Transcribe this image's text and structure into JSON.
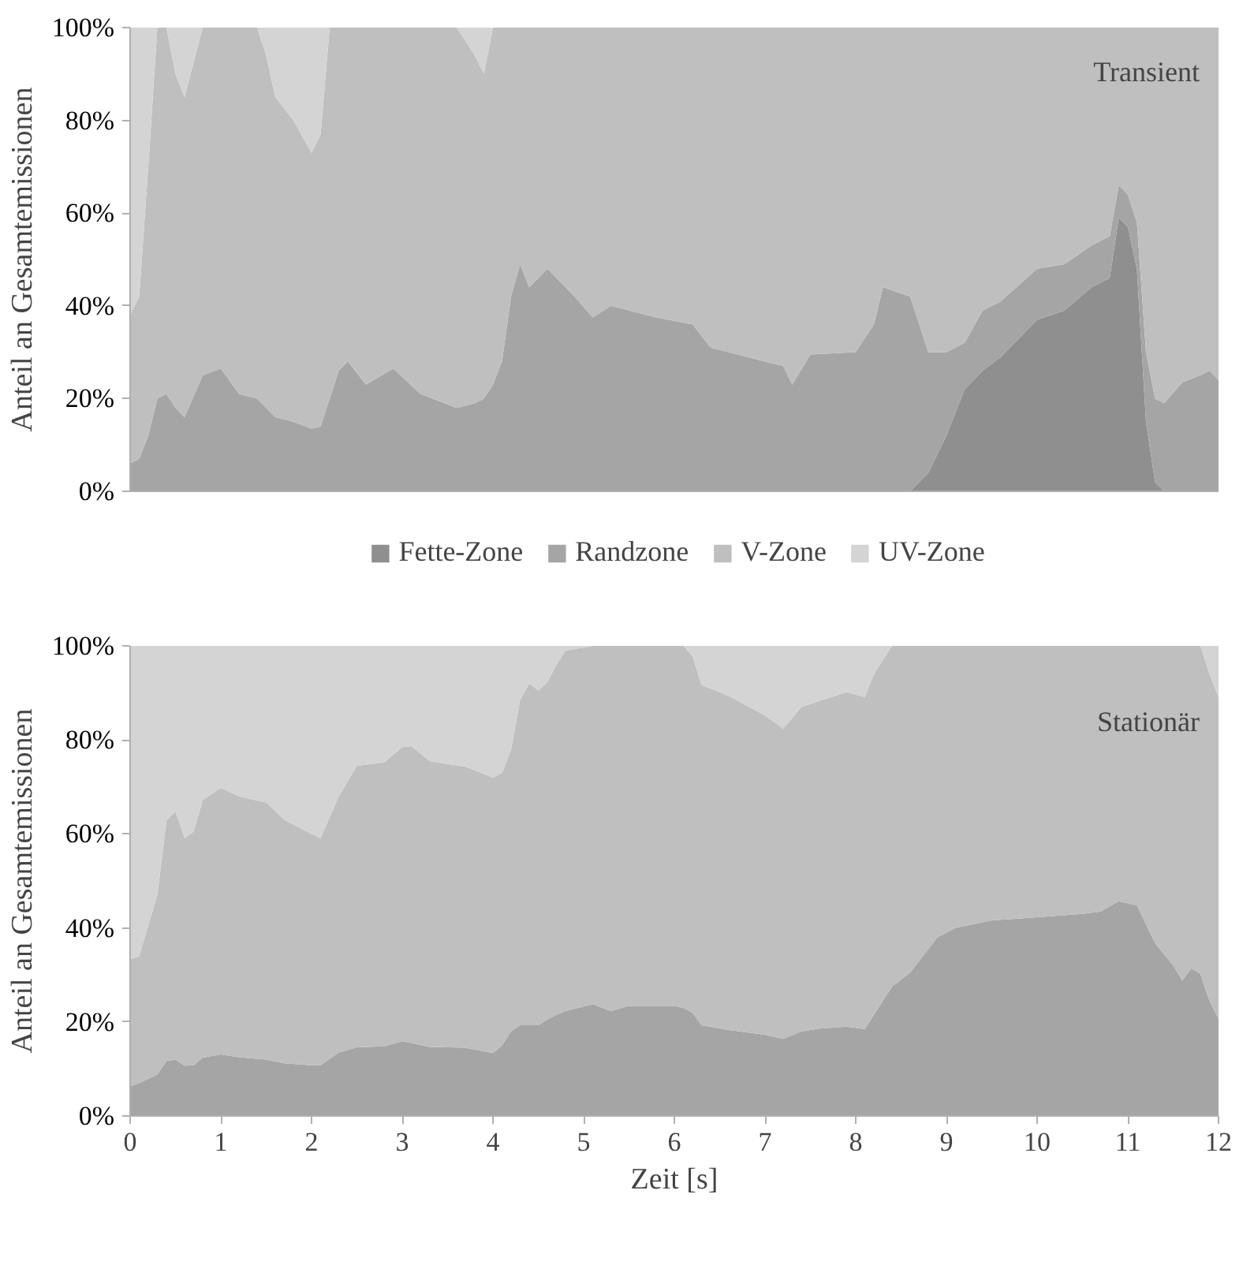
{
  "chart_data": [
    {
      "type": "area",
      "stacked": true,
      "ylabel": "Anteil an Gesamtemissionen",
      "annotations": [
        "Transient"
      ],
      "legend": "bottom",
      "grid": false,
      "tick_labels": "y",
      "x": [
        0,
        0.1,
        0.2,
        0.3,
        0.4,
        0.5,
        0.6,
        0.8,
        1.0,
        1.2,
        1.4,
        1.5,
        1.6,
        1.8,
        2.0,
        2.1,
        2.2,
        2.3,
        2.4,
        2.6,
        2.9,
        3.2,
        3.6,
        3.8,
        3.9,
        4.0,
        4.1,
        4.2,
        4.3,
        4.4,
        4.6,
        4.9,
        5.1,
        5.3,
        5.8,
        6.2,
        6.4,
        6.8,
        7.2,
        7.3,
        7.5,
        8.0,
        8.2,
        8.3,
        8.6,
        8.8,
        9.0,
        9.2,
        9.4,
        9.6,
        10.0,
        10.3,
        10.6,
        10.8,
        10.9,
        11.0,
        11.1,
        11.2,
        11.3,
        11.4,
        11.6,
        11.8,
        11.9,
        12.0
      ],
      "xlim": [
        0,
        12
      ],
      "ylim": [
        0,
        100
      ],
      "yticks": [
        {
          "value": 0,
          "label": "0%"
        },
        {
          "value": 20,
          "label": "20%"
        },
        {
          "value": 40,
          "label": "40%"
        },
        {
          "value": 60,
          "label": "60%"
        },
        {
          "value": 80,
          "label": "80%"
        },
        {
          "value": 100,
          "label": "100%"
        }
      ],
      "series": [
        {
          "name": "Fette-Zone",
          "color": "#8f8f8f",
          "values": [
            0,
            0,
            0,
            0,
            0,
            0,
            0,
            0,
            0,
            0,
            0,
            0,
            0,
            0,
            0,
            0,
            0,
            0,
            0,
            0,
            0,
            0,
            0,
            0,
            0,
            0,
            0,
            0,
            0,
            0,
            0,
            0,
            0,
            0,
            0,
            0,
            0,
            0,
            0,
            0,
            0,
            0,
            0,
            0,
            0,
            4,
            12,
            22,
            26,
            29,
            37,
            39,
            44,
            46,
            59,
            57,
            48,
            15,
            2,
            0,
            0,
            0,
            0,
            0
          ]
        },
        {
          "name": "Randzone",
          "color": "#a5a5a5",
          "values": [
            6,
            7,
            12,
            20,
            21,
            18,
            16,
            25,
            26.5,
            21,
            20,
            18,
            16,
            15,
            13.5,
            14,
            20,
            26,
            28,
            23,
            26.5,
            21,
            18,
            19,
            20,
            23,
            28,
            42,
            49,
            44,
            48,
            42,
            37.5,
            40,
            37.5,
            36,
            31,
            29,
            27,
            23,
            29.5,
            30,
            36,
            44,
            42,
            26,
            18,
            10,
            13,
            12,
            11,
            10,
            9,
            9,
            7,
            7,
            10,
            15,
            18,
            19,
            23.5,
            25,
            26,
            24
          ]
        },
        {
          "name": "V-Zone",
          "color": "#bfbfbf",
          "values": [
            32,
            35,
            58,
            80,
            79,
            72,
            69,
            75,
            73.5,
            79,
            80,
            76,
            69,
            65,
            59.5,
            63,
            80,
            74,
            72,
            77,
            73.5,
            79,
            82,
            75,
            70,
            77,
            72,
            58,
            51,
            56,
            52,
            58,
            62.5,
            60,
            62.5,
            64,
            69,
            71,
            73,
            77,
            70.5,
            70,
            64,
            56,
            58,
            70,
            70,
            68,
            61,
            59,
            52,
            51,
            47,
            45,
            34,
            36,
            42,
            70,
            80,
            81,
            76.5,
            75,
            74,
            76
          ]
        },
        {
          "name": "UV-Zone",
          "color": "#d4d4d4",
          "values": [
            62,
            58,
            30,
            0,
            0,
            10,
            15,
            0,
            0,
            0,
            0,
            6,
            15,
            20,
            27,
            23,
            0,
            0,
            0,
            0,
            0,
            0,
            0,
            6,
            10,
            0,
            0,
            0,
            0,
            0,
            0,
            0,
            0,
            0,
            0,
            0,
            0,
            0,
            0,
            0,
            0,
            0,
            0,
            0,
            0,
            0,
            0,
            0,
            0,
            0,
            0,
            0,
            0,
            0,
            0,
            0,
            0,
            0,
            0,
            0,
            0,
            0,
            0,
            0
          ]
        }
      ]
    },
    {
      "type": "area",
      "stacked": true,
      "xlabel": "Zeit [s]",
      "ylabel": "Anteil an Gesamtemissionen",
      "annotations": [
        "Stationär"
      ],
      "grid": false,
      "x": [
        0,
        0.1,
        0.3,
        0.4,
        0.5,
        0.6,
        0.7,
        0.8,
        1.0,
        1.2,
        1.5,
        1.7,
        2.0,
        2.1,
        2.3,
        2.5,
        2.8,
        3.0,
        3.1,
        3.3,
        3.7,
        4.0,
        4.1,
        4.2,
        4.3,
        4.4,
        4.5,
        4.6,
        4.7,
        4.8,
        5.1,
        5.3,
        5.5,
        6.0,
        6.1,
        6.2,
        6.3,
        6.6,
        7.0,
        7.2,
        7.4,
        7.6,
        7.9,
        8.1,
        8.2,
        8.4,
        8.6,
        8.9,
        9.1,
        9.5,
        10.0,
        10.5,
        10.7,
        10.9,
        11.1,
        11.3,
        11.5,
        11.6,
        11.7,
        11.8,
        11.9,
        12.0
      ],
      "xlim": [
        0,
        12
      ],
      "ylim": [
        0,
        100
      ],
      "xticks": [
        0,
        1,
        2,
        3,
        4,
        5,
        6,
        7,
        8,
        9,
        10,
        11,
        12
      ],
      "yticks": [
        {
          "value": 0,
          "label": "0%"
        },
        {
          "value": 20,
          "label": "20%"
        },
        {
          "value": 40,
          "label": "40%"
        },
        {
          "value": 60,
          "label": "60%"
        },
        {
          "value": 80,
          "label": "80%"
        },
        {
          "value": 100,
          "label": "100%"
        }
      ],
      "series": [
        {
          "color": "#a5a5a5",
          "values": [
            6.3,
            7,
            8.8,
            11.7,
            12,
            10.7,
            10.8,
            12.4,
            13.1,
            12.5,
            12,
            11.2,
            10.8,
            10.8,
            13.5,
            14.6,
            14.8,
            15.9,
            15.5,
            14.7,
            14.5,
            13.4,
            15,
            18,
            19.3,
            19.3,
            19.3,
            20.5,
            21.5,
            22.3,
            23.8,
            22.3,
            23.4,
            23.4,
            23,
            22,
            19.3,
            18.3,
            17.3,
            16.4,
            18,
            18.6,
            19,
            18.5,
            21.5,
            27.5,
            30.5,
            38,
            40,
            41.6,
            42.3,
            43,
            43.5,
            45.7,
            44.8,
            36.8,
            32,
            28.8,
            31.4,
            30.2,
            24.5,
            20.7
          ]
        },
        {
          "color": "#bfbfbf",
          "values": [
            27,
            27,
            38.2,
            51.1,
            52.8,
            48.4,
            49.7,
            54.8,
            56.7,
            55.5,
            54.7,
            51.8,
            49.2,
            48.3,
            54.5,
            59.9,
            60.4,
            62.6,
            63.2,
            60.8,
            59.8,
            58.6,
            58,
            60,
            69.2,
            72.7,
            71.2,
            71.8,
            74.5,
            76.7,
            76.2,
            77.7,
            76.6,
            76.6,
            77,
            75.8,
            72.4,
            71.1,
            67.9,
            66,
            69,
            69.7,
            71.2,
            70.6,
            72.5,
            72.5,
            69.5,
            62,
            60,
            58.4,
            57.7,
            57,
            56.5,
            54.3,
            55.2,
            63.2,
            68,
            71.2,
            68.6,
            69.8,
            69.5,
            68.4
          ]
        },
        {
          "color": "#d4d4d4",
          "values": [
            66.7,
            66,
            53,
            37.2,
            35.2,
            40.9,
            39.5,
            32.8,
            30.2,
            32,
            33.3,
            37,
            40,
            40.9,
            32,
            25.5,
            24.8,
            21.5,
            21.3,
            24.5,
            25.7,
            28,
            27,
            22,
            11.5,
            8,
            9.5,
            7.7,
            4,
            1,
            0,
            0,
            0,
            0,
            0,
            2.2,
            8.3,
            10.6,
            14.8,
            17.6,
            13,
            11.7,
            9.8,
            10.9,
            6,
            0,
            0,
            0,
            0,
            0,
            0,
            0,
            0,
            0,
            0,
            0,
            0,
            0,
            0,
            0,
            6,
            10.9
          ]
        }
      ]
    }
  ]
}
